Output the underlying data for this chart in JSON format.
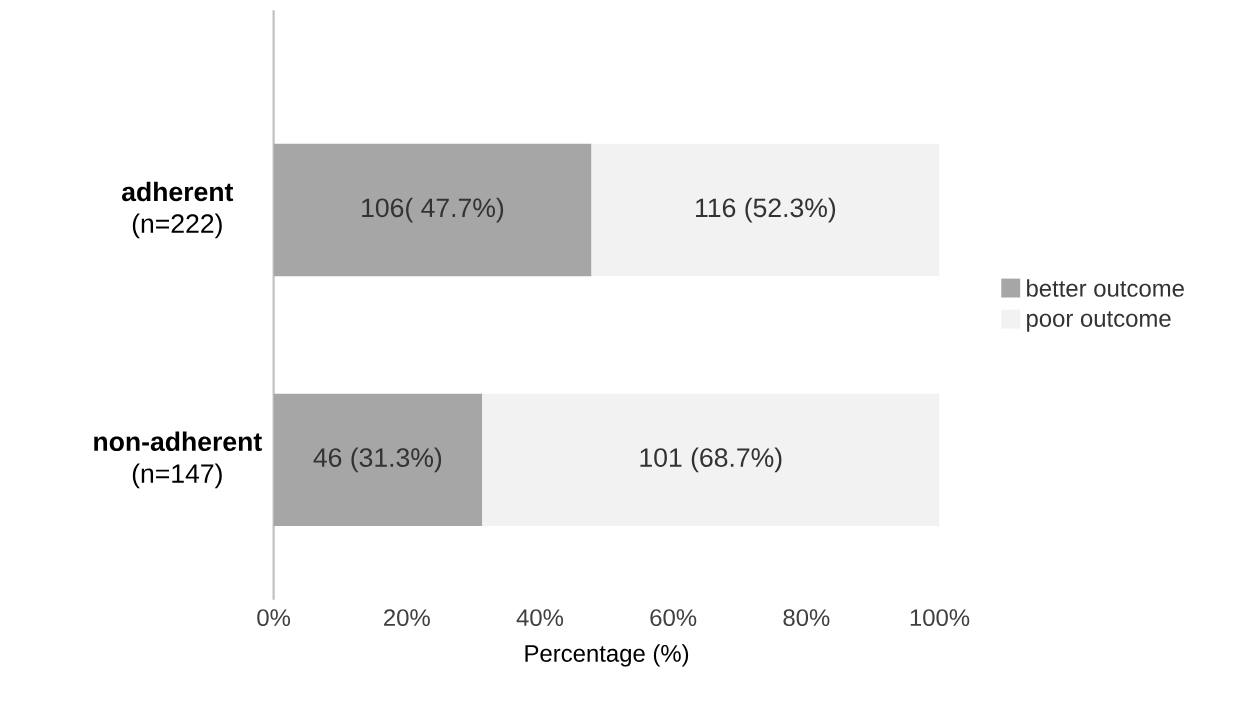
{
  "chart_data": {
    "type": "bar",
    "orientation": "horizontal",
    "stacked": true,
    "categories": [
      "**adherent** (n=222)",
      "**non-adherent** (n=147)"
    ],
    "series": [
      {
        "name": "better outcome",
        "color": "#a6a6a6",
        "values": [
          47.7,
          31.3
        ],
        "value_labels": [
          "106( 47.7%)",
          "46 (31.3%)"
        ]
      },
      {
        "name": "poor outcome",
        "color": "#f2f2f2",
        "values": [
          52.3,
          68.7
        ],
        "value_labels": [
          "116 (52.3%)",
          "101 (68.7%)"
        ]
      }
    ],
    "xlabel": "Percentage (%)",
    "xlim": [
      0,
      100
    ],
    "xticks": [
      {
        "value": 0,
        "label": "0%"
      },
      {
        "value": 20,
        "label": "20%"
      },
      {
        "value": 40,
        "label": "40%"
      },
      {
        "value": 60,
        "label": "60%"
      },
      {
        "value": 80,
        "label": "80%"
      },
      {
        "value": 100,
        "label": "100%"
      }
    ],
    "legend": "right",
    "grid": false
  }
}
